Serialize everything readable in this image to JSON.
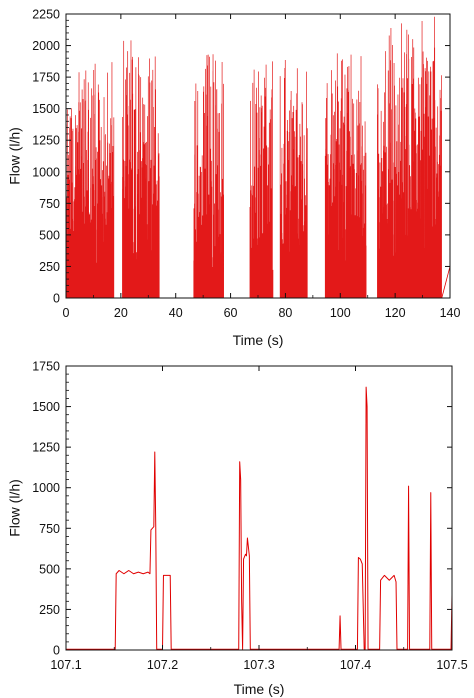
{
  "chart_data": [
    {
      "type": "line",
      "title": "",
      "xlabel": "Time (s)",
      "ylabel": "Flow (l/h)",
      "xlim": [
        0,
        140
      ],
      "ylim": [
        0,
        2250
      ],
      "x_ticks": [
        "0",
        "20",
        "40",
        "60",
        "80",
        "100",
        "120",
        "140"
      ],
      "y_ticks": [
        "0",
        "250",
        "500",
        "750",
        "1000",
        "1250",
        "1500",
        "1750",
        "2000",
        "2250"
      ],
      "grid": false,
      "legend": "none",
      "line_color": "#e00000",
      "note": "",
      "series": [
        {
          "name": "",
          "bursts": [
            {
              "t_start": 0.0,
              "t_end": 17.5,
              "peak": 1900
            },
            {
              "t_start": 20.5,
              "t_end": 34.0,
              "peak": 2050
            },
            {
              "t_start": 46.5,
              "t_end": 57.5,
              "peak": 1950
            },
            {
              "t_start": 67.0,
              "t_end": 75.5,
              "peak": 1900
            },
            {
              "t_start": 78.0,
              "t_end": 88.0,
              "peak": 1900
            },
            {
              "t_start": 94.5,
              "t_end": 109.5,
              "peak": 1950
            },
            {
              "t_start": 113.5,
              "t_end": 137.0,
              "peak": 2250
            }
          ],
          "tail": {
            "t_start": 137.0,
            "t_end": 140.0,
            "level": 250
          }
        }
      ]
    },
    {
      "type": "line",
      "title": "",
      "xlabel": "Time (s)",
      "ylabel": "Flow (l/h)",
      "xlim": [
        107.1,
        107.5
      ],
      "ylim": [
        0,
        1750
      ],
      "x_ticks": [
        "107.1",
        "107.2",
        "107.3",
        "107.4",
        "107.5"
      ],
      "y_ticks": [
        "0",
        "250",
        "500",
        "750",
        "1000",
        "1250",
        "1500",
        "1750"
      ],
      "grid": false,
      "legend": "none",
      "line_color": "#e00000",
      "series": [
        {
          "name": "",
          "x": [
            107.1,
            107.151,
            107.152,
            107.155,
            107.16,
            107.165,
            107.17,
            107.175,
            107.18,
            107.185,
            107.187,
            107.188,
            107.191,
            107.192,
            107.193,
            107.194,
            107.195,
            107.196,
            107.2,
            107.201,
            107.208,
            107.209,
            107.279,
            107.28,
            107.281,
            107.282,
            107.283,
            107.284,
            107.286,
            107.287,
            107.288,
            107.29,
            107.291,
            107.292,
            107.293,
            107.294,
            107.295,
            107.383,
            107.384,
            107.385,
            107.402,
            107.403,
            107.405,
            107.407,
            107.409,
            107.41,
            107.411,
            107.412,
            107.413,
            107.414,
            107.425,
            107.426,
            107.43,
            107.435,
            107.44,
            107.442,
            107.443,
            107.454,
            107.455,
            107.456,
            107.477,
            107.478,
            107.479,
            107.499,
            107.5
          ],
          "y": [
            5,
            5,
            470,
            490,
            470,
            490,
            470,
            480,
            470,
            480,
            470,
            740,
            760,
            1220,
            760,
            5,
            5,
            5,
            5,
            460,
            460,
            5,
            5,
            1160,
            1050,
            300,
            5,
            560,
            590,
            580,
            690,
            580,
            5,
            5,
            5,
            5,
            5,
            5,
            210,
            5,
            5,
            570,
            560,
            530,
            5,
            5,
            1620,
            1500,
            5,
            5,
            5,
            430,
            460,
            430,
            460,
            420,
            5,
            5,
            1010,
            5,
            5,
            970,
            5,
            5,
            340
          ]
        }
      ]
    }
  ]
}
